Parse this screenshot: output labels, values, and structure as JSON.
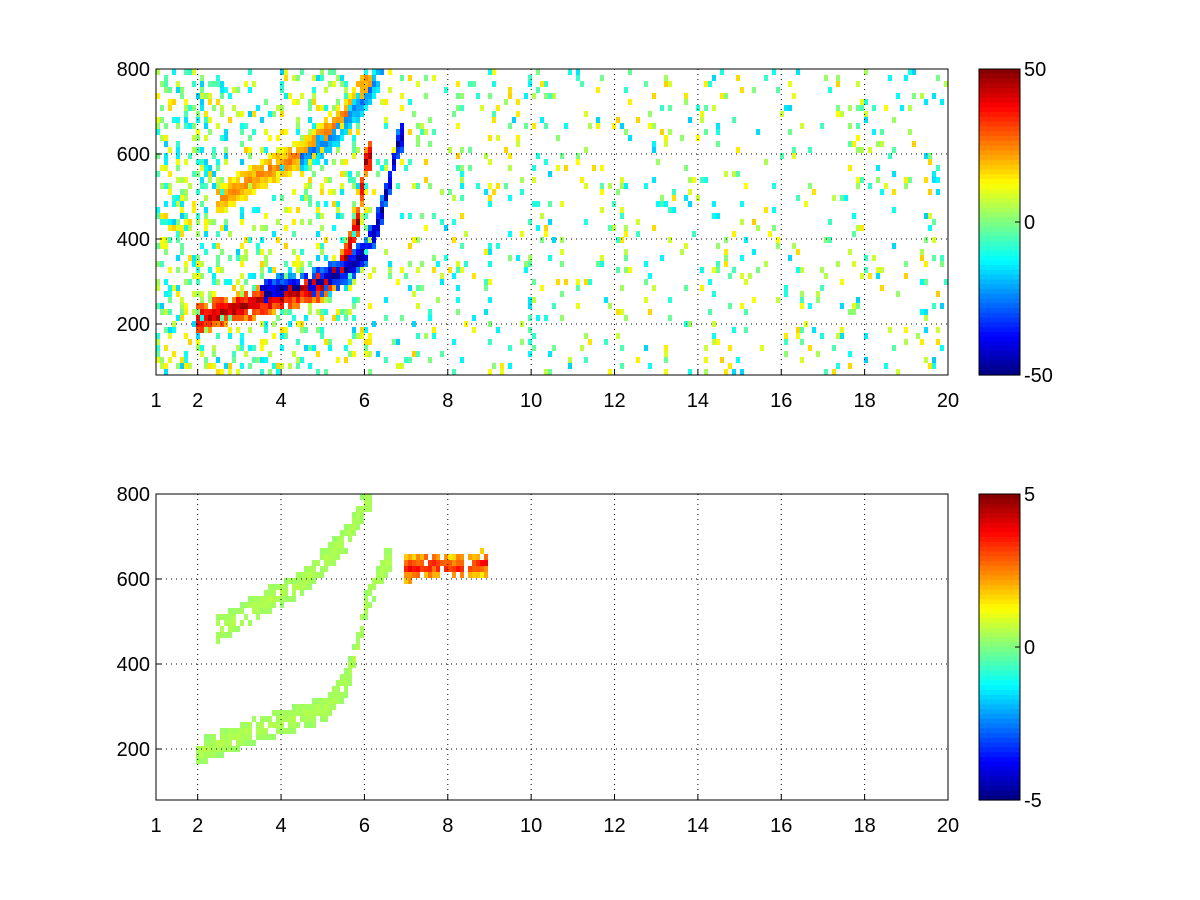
{
  "chart_data": [
    {
      "type": "heatmap",
      "title": "",
      "xlabel": "",
      "ylabel": "",
      "xlim": [
        1,
        20
      ],
      "ylim": [
        80,
        800
      ],
      "x_ticks": [
        "1",
        "2",
        "4",
        "6",
        "8",
        "10",
        "12",
        "14",
        "16",
        "18",
        "20"
      ],
      "y_ticks": [
        "200",
        "400",
        "600",
        "800"
      ],
      "grid": true,
      "colormap": "jet",
      "clim": [
        -50,
        50
      ],
      "colorbar_ticks": [
        "50",
        "0",
        "-50"
      ],
      "features": [
        {
          "name": "lower ridge (positive)",
          "x": [
            2.0,
            3.0,
            4.0,
            5.0,
            5.5,
            5.8,
            6.0
          ],
          "y": [
            220,
            245,
            275,
            300,
            360,
            450,
            600
          ],
          "value": 45
        },
        {
          "name": "lower ridge (negative)",
          "x": [
            3.5,
            4.5,
            5.5,
            6.0,
            6.3,
            6.6,
            6.8
          ],
          "y": [
            280,
            295,
            330,
            380,
            450,
            560,
            650
          ],
          "value": -45
        },
        {
          "name": "upper ridge (positive)",
          "x": [
            2.5,
            3.5,
            4.5,
            5.5,
            6.0
          ],
          "y": [
            500,
            560,
            610,
            700,
            780
          ],
          "value": 25
        },
        {
          "name": "upper ridge (negative)",
          "x": [
            4.5,
            5.2,
            5.8,
            6.3
          ],
          "y": [
            600,
            650,
            720,
            790
          ],
          "value": -25
        }
      ]
    },
    {
      "type": "heatmap",
      "title": "",
      "xlabel": "",
      "ylabel": "",
      "xlim": [
        1,
        20
      ],
      "ylim": [
        80,
        800
      ],
      "x_ticks": [
        "1",
        "2",
        "4",
        "6",
        "8",
        "10",
        "12",
        "14",
        "16",
        "18",
        "20"
      ],
      "y_ticks": [
        "200",
        "400",
        "600",
        "800"
      ],
      "grid": true,
      "colormap": "jet",
      "clim": [
        -5,
        5
      ],
      "colorbar_ticks": [
        "5",
        "0",
        "-5"
      ],
      "features": [
        {
          "name": "lower band",
          "x": [
            2.0,
            3.0,
            4.0,
            5.0,
            5.5,
            5.8,
            6.0,
            6.5
          ],
          "y": [
            200,
            240,
            270,
            300,
            360,
            450,
            550,
            650
          ],
          "value": 0.5
        },
        {
          "name": "upper band",
          "x": [
            2.5,
            3.5,
            4.5,
            5.5,
            6.0
          ],
          "y": [
            490,
            550,
            600,
            700,
            790
          ],
          "value": 0.5
        },
        {
          "name": "horizontal streak",
          "x": [
            7.0,
            7.5,
            8.0,
            8.5,
            8.8
          ],
          "y": [
            630,
            640,
            632,
            635,
            645
          ],
          "value": 3.5
        }
      ]
    }
  ]
}
